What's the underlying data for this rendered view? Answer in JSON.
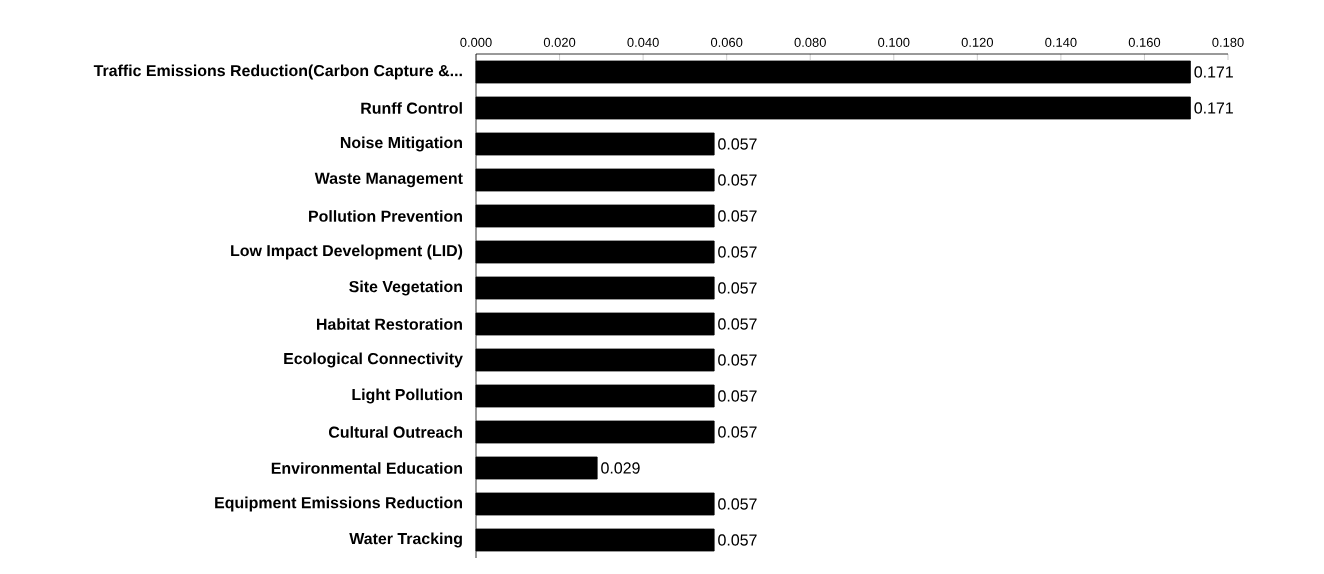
{
  "chart_data": {
    "type": "bar",
    "orientation": "horizontal",
    "categories": [
      "Traffic Emissions Reduction(Carbon Capture &...",
      "Runff Control",
      "Noise Mitigation",
      "Waste Management",
      "Pollution Prevention",
      "Low Impact Development (LID)",
      "Site Vegetation",
      "Habitat Restoration",
      "Ecological Connectivity",
      "Light Pollution",
      "Cultural Outreach",
      "Environmental Education",
      "Equipment Emissions Reduction",
      "Water Tracking"
    ],
    "values": [
      0.171,
      0.171,
      0.057,
      0.057,
      0.057,
      0.057,
      0.057,
      0.057,
      0.057,
      0.057,
      0.057,
      0.029,
      0.057,
      0.057
    ],
    "color": "#000000",
    "xlim": [
      0,
      0.18
    ],
    "xticks": [
      {
        "value": 0,
        "label": "0.000"
      },
      {
        "value": 0.02,
        "label": "0.020"
      },
      {
        "value": 0.04,
        "label": "0.040"
      },
      {
        "value": 0.06,
        "label": "0.060"
      },
      {
        "value": 0.08,
        "label": "0.080"
      },
      {
        "value": 0.1,
        "label": "0.100"
      },
      {
        "value": 0.12,
        "label": "0.120"
      },
      {
        "value": 0.14,
        "label": "0.140"
      },
      {
        "value": 0.16,
        "label": "0.160"
      },
      {
        "value": 0.18,
        "label": "0.180"
      }
    ],
    "data_labels": true
  }
}
